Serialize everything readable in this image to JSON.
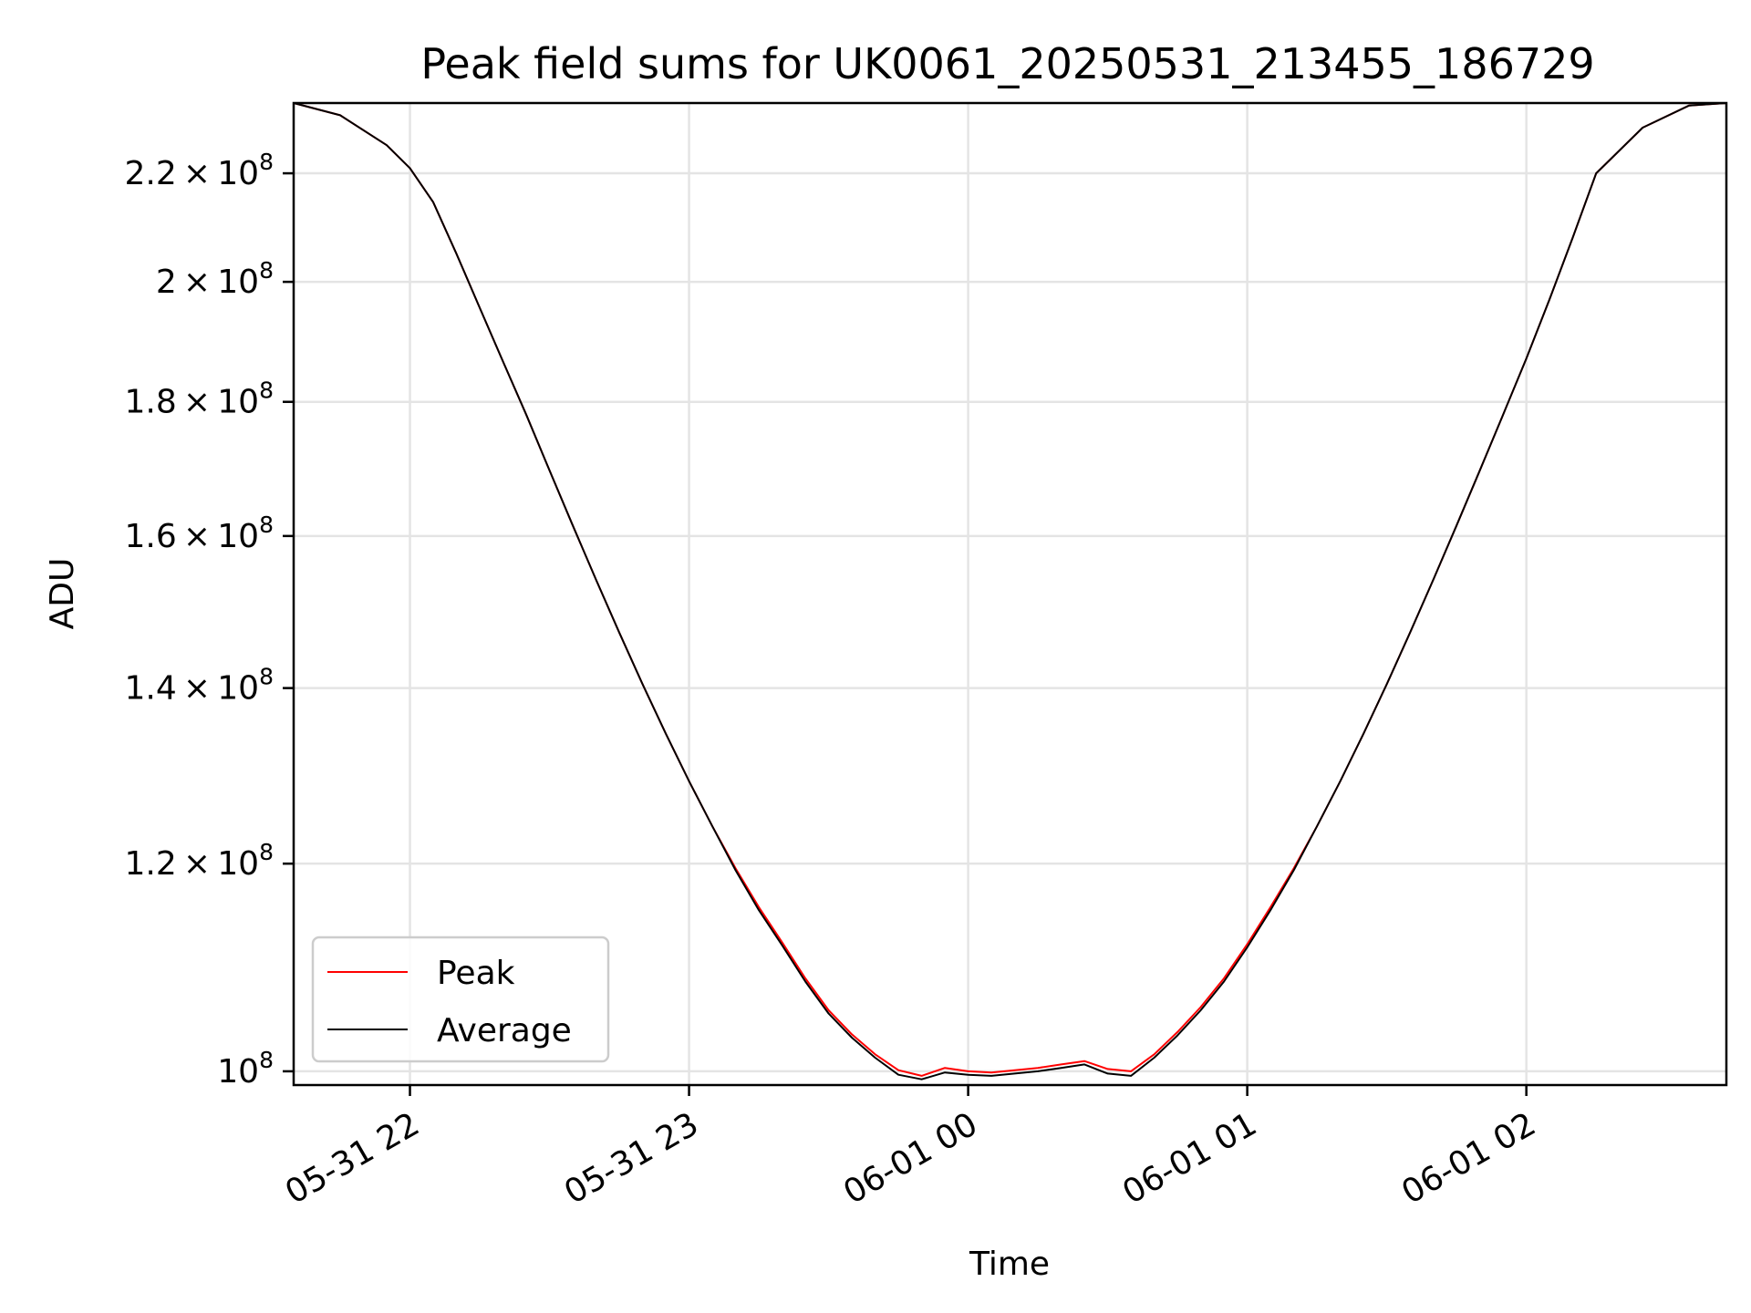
{
  "chart_data": {
    "type": "line",
    "title": "Peak field sums for UK0061_20250531_213455_186729",
    "xlabel": "Time",
    "ylabel": "ADU",
    "y_scale": "log",
    "xlim": [
      "2025-05-31 21:35",
      "2025-06-01 02:43"
    ],
    "ylim": [
      98800000,
      234000000
    ],
    "grid": true,
    "legend_position": "lower-left",
    "colors": {
      "Peak": "#ff0000",
      "Average": "#000000"
    },
    "x_ticks": [
      {
        "label": "05-31 22",
        "value": "2025-05-31 22:00"
      },
      {
        "label": "05-31 23",
        "value": "2025-05-31 23:00"
      },
      {
        "label": "06-01 00",
        "value": "2025-06-01 00:00"
      },
      {
        "label": "06-01 01",
        "value": "2025-06-01 01:00"
      },
      {
        "label": "06-01 02",
        "value": "2025-06-01 02:00"
      }
    ],
    "y_ticks": [
      {
        "mant": "2.2",
        "value": 220000000
      },
      {
        "mant": "2",
        "value": 200000000
      },
      {
        "mant": "1.8",
        "value": 180000000
      },
      {
        "mant": "1.6",
        "value": 160000000
      },
      {
        "mant": "1.4",
        "value": 140000000
      },
      {
        "mant": "1.2",
        "value": 120000000
      },
      {
        "mant": "",
        "value": 100000000
      }
    ],
    "series": [
      {
        "name": "Peak",
        "x": [
          "2025-05-31 21:35",
          "2025-05-31 21:45",
          "2025-05-31 21:55",
          "2025-05-31 22:00",
          "2025-05-31 22:05",
          "2025-05-31 22:10",
          "2025-05-31 22:15",
          "2025-05-31 22:20",
          "2025-05-31 22:25",
          "2025-05-31 22:30",
          "2025-05-31 22:35",
          "2025-05-31 22:40",
          "2025-05-31 22:45",
          "2025-05-31 22:50",
          "2025-05-31 22:55",
          "2025-05-31 23:00",
          "2025-05-31 23:05",
          "2025-05-31 23:10",
          "2025-05-31 23:15",
          "2025-05-31 23:20",
          "2025-05-31 23:25",
          "2025-05-31 23:30",
          "2025-05-31 23:35",
          "2025-05-31 23:40",
          "2025-05-31 23:45",
          "2025-05-31 23:50",
          "2025-05-31 23:55",
          "2025-06-01 00:00",
          "2025-06-01 00:05",
          "2025-06-01 00:10",
          "2025-06-01 00:15",
          "2025-06-01 00:20",
          "2025-06-01 00:25",
          "2025-06-01 00:30",
          "2025-06-01 00:35",
          "2025-06-01 00:40",
          "2025-06-01 00:45",
          "2025-06-01 00:50",
          "2025-06-01 00:55",
          "2025-06-01 01:00",
          "2025-06-01 01:05",
          "2025-06-01 01:10",
          "2025-06-01 01:15",
          "2025-06-01 01:20",
          "2025-06-01 01:25",
          "2025-06-01 01:30",
          "2025-06-01 01:35",
          "2025-06-01 01:40",
          "2025-06-01 01:45",
          "2025-06-01 01:50",
          "2025-06-01 01:55",
          "2025-06-01 02:00",
          "2025-06-01 02:05",
          "2025-06-01 02:10",
          "2025-06-01 02:15",
          "2025-06-01 02:25",
          "2025-06-01 02:35",
          "2025-06-01 02:43"
        ],
        "y": [
          234000000,
          231500000,
          225500000,
          221000000,
          214500000,
          205000000,
          195500000,
          186500000,
          178000000,
          169500000,
          161500000,
          154000000,
          147000000,
          140500000,
          134500000,
          129000000,
          124000000,
          119500000,
          115500000,
          112000000,
          108500000,
          105500000,
          103300000,
          101500000,
          100100000,
          99600000,
          100300000,
          100000000,
          99900000,
          100100000,
          100300000,
          100600000,
          100900000,
          100200000,
          100000000,
          101500000,
          103500000,
          105800000,
          108500000,
          111800000,
          115500000,
          119500000,
          124000000,
          129000000,
          134500000,
          140500000,
          147000000,
          154000000,
          161500000,
          169500000,
          178000000,
          187000000,
          197000000,
          208000000,
          220000000,
          229000000,
          233500000,
          234000000
        ]
      },
      {
        "name": "Average",
        "x": [
          "2025-05-31 21:35",
          "2025-05-31 21:45",
          "2025-05-31 21:55",
          "2025-05-31 22:00",
          "2025-05-31 22:05",
          "2025-05-31 22:10",
          "2025-05-31 22:15",
          "2025-05-31 22:20",
          "2025-05-31 22:25",
          "2025-05-31 22:30",
          "2025-05-31 22:35",
          "2025-05-31 22:40",
          "2025-05-31 22:45",
          "2025-05-31 22:50",
          "2025-05-31 22:55",
          "2025-05-31 23:00",
          "2025-05-31 23:05",
          "2025-05-31 23:10",
          "2025-05-31 23:15",
          "2025-05-31 23:20",
          "2025-05-31 23:25",
          "2025-05-31 23:30",
          "2025-05-31 23:35",
          "2025-05-31 23:40",
          "2025-05-31 23:45",
          "2025-05-31 23:50",
          "2025-05-31 23:55",
          "2025-06-01 00:00",
          "2025-06-01 00:05",
          "2025-06-01 00:10",
          "2025-06-01 00:15",
          "2025-06-01 00:20",
          "2025-06-01 00:25",
          "2025-06-01 00:30",
          "2025-06-01 00:35",
          "2025-06-01 00:40",
          "2025-06-01 00:45",
          "2025-06-01 00:50",
          "2025-06-01 00:55",
          "2025-06-01 01:00",
          "2025-06-01 01:05",
          "2025-06-01 01:10",
          "2025-06-01 01:15",
          "2025-06-01 01:20",
          "2025-06-01 01:25",
          "2025-06-01 01:30",
          "2025-06-01 01:35",
          "2025-06-01 01:40",
          "2025-06-01 01:45",
          "2025-06-01 01:50",
          "2025-06-01 01:55",
          "2025-06-01 02:00",
          "2025-06-01 02:05",
          "2025-06-01 02:10",
          "2025-06-01 02:15",
          "2025-06-01 02:25",
          "2025-06-01 02:35",
          "2025-06-01 02:43"
        ],
        "y": [
          234000000,
          231500000,
          225500000,
          221000000,
          214500000,
          205000000,
          195500000,
          186500000,
          178000000,
          169500000,
          161500000,
          154000000,
          147000000,
          140500000,
          134500000,
          129000000,
          124000000,
          119300000,
          115200000,
          111700000,
          108200000,
          105200000,
          103000000,
          101200000,
          99700000,
          99300000,
          99900000,
          99700000,
          99600000,
          99800000,
          100000000,
          100300000,
          100600000,
          99800000,
          99600000,
          101200000,
          103200000,
          105500000,
          108200000,
          111500000,
          115200000,
          119300000,
          124000000,
          129000000,
          134500000,
          140500000,
          147000000,
          154000000,
          161500000,
          169500000,
          178000000,
          187000000,
          197000000,
          208000000,
          220000000,
          229000000,
          233500000,
          234000000
        ]
      }
    ]
  }
}
